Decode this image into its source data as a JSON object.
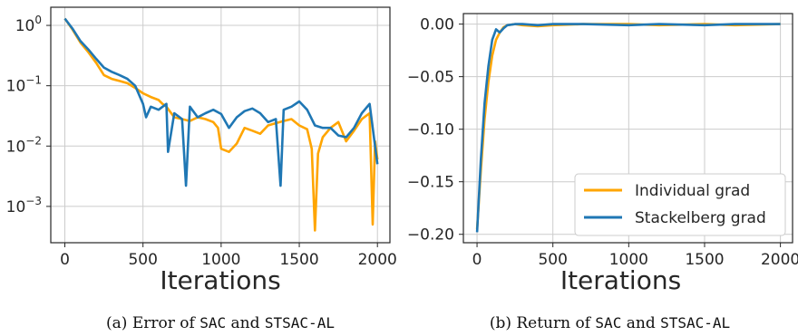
{
  "colors": {
    "individual": "#ffa500",
    "stackelberg": "#1f77b4",
    "grid": "#cccccc",
    "axis": "#262626"
  },
  "chart_data": [
    {
      "type": "line",
      "subplot": "a",
      "caption": {
        "prefix": "(a) Error of",
        "code1": "SAC",
        "mid": "and",
        "code2": "STSAC-AL"
      },
      "xlabel": "Iterations",
      "ylabel": "",
      "yscale": "log",
      "xlim": [
        -90,
        2080
      ],
      "ylim": [
        0.00025,
        2.0
      ],
      "xticks": [
        0,
        500,
        1000,
        1500,
        2000
      ],
      "ytick_values": [
        1,
        0.1,
        0.01,
        0.001
      ],
      "yticks": [
        {
          "base": "10",
          "exp": "0"
        },
        {
          "base": "10",
          "exp": "−1"
        },
        {
          "base": "10",
          "exp": "−2"
        },
        {
          "base": "10",
          "exp": "−3"
        }
      ],
      "grid": true,
      "legend": null,
      "series": [
        {
          "name": "Individual grad",
          "color": "#ffa500",
          "x": [
            0,
            50,
            100,
            150,
            200,
            250,
            300,
            350,
            400,
            450,
            500,
            550,
            600,
            625,
            650,
            700,
            750,
            800,
            850,
            900,
            950,
            980,
            1000,
            1050,
            1100,
            1150,
            1200,
            1250,
            1300,
            1350,
            1400,
            1450,
            1500,
            1550,
            1580,
            1600,
            1620,
            1650,
            1700,
            1750,
            1800,
            1850,
            1900,
            1950,
            1970,
            1985,
            2000
          ],
          "y": [
            1.3,
            0.85,
            0.52,
            0.36,
            0.24,
            0.15,
            0.13,
            0.12,
            0.11,
            0.092,
            0.075,
            0.065,
            0.058,
            0.05,
            0.045,
            0.03,
            0.028,
            0.026,
            0.03,
            0.028,
            0.025,
            0.02,
            0.009,
            0.008,
            0.011,
            0.02,
            0.018,
            0.016,
            0.022,
            0.024,
            0.026,
            0.028,
            0.022,
            0.019,
            0.009,
            0.0004,
            0.0075,
            0.014,
            0.02,
            0.025,
            0.012,
            0.018,
            0.028,
            0.035,
            0.0005,
            0.012,
            0.006
          ]
        },
        {
          "name": "Stackelberg grad",
          "color": "#1f77b4",
          "x": [
            0,
            50,
            100,
            150,
            200,
            250,
            300,
            350,
            400,
            450,
            500,
            520,
            550,
            600,
            650,
            660,
            700,
            750,
            775,
            800,
            850,
            900,
            950,
            1000,
            1050,
            1100,
            1150,
            1200,
            1250,
            1300,
            1350,
            1380,
            1400,
            1450,
            1500,
            1550,
            1600,
            1650,
            1700,
            1750,
            1800,
            1850,
            1900,
            1950,
            2000
          ],
          "y": [
            1.3,
            0.88,
            0.55,
            0.4,
            0.28,
            0.2,
            0.17,
            0.15,
            0.13,
            0.1,
            0.05,
            0.03,
            0.045,
            0.04,
            0.05,
            0.008,
            0.035,
            0.028,
            0.0022,
            0.045,
            0.03,
            0.035,
            0.04,
            0.034,
            0.02,
            0.03,
            0.038,
            0.042,
            0.035,
            0.025,
            0.028,
            0.0022,
            0.04,
            0.045,
            0.055,
            0.04,
            0.022,
            0.02,
            0.02,
            0.015,
            0.014,
            0.02,
            0.035,
            0.05,
            0.005
          ]
        }
      ]
    },
    {
      "type": "line",
      "subplot": "b",
      "caption": {
        "prefix": "(b) Return of",
        "code1": "SAC",
        "mid": "and",
        "code2": "STSAC-AL"
      },
      "xlabel": "Iterations",
      "ylabel": "",
      "xlim": [
        -90,
        2080
      ],
      "ylim": [
        -0.208,
        0.01
      ],
      "xticks": [
        0,
        500,
        1000,
        1500,
        2000
      ],
      "yticks": [
        0.0,
        -0.05,
        -0.1,
        -0.15,
        -0.2
      ],
      "ytick_labels": [
        "0.00",
        "−0.05",
        "−0.10",
        "−0.15",
        "−0.20"
      ],
      "grid": true,
      "legend": "bottom-right",
      "series": [
        {
          "name": "Individual grad",
          "color": "#ffa500",
          "x": [
            0,
            25,
            50,
            75,
            100,
            125,
            150,
            175,
            200,
            250,
            300,
            400,
            500,
            700,
            1000,
            1200,
            1500,
            1700,
            2000
          ],
          "y": [
            -0.195,
            -0.14,
            -0.09,
            -0.055,
            -0.03,
            -0.015,
            -0.008,
            -0.003,
            -0.001,
            0.0,
            -0.001,
            -0.002,
            -0.001,
            0.0,
            0.0,
            -0.001,
            0.0,
            -0.001,
            0.0
          ]
        },
        {
          "name": "Stackelberg grad",
          "color": "#1f77b4",
          "x": [
            0,
            25,
            50,
            75,
            100,
            125,
            150,
            175,
            200,
            250,
            300,
            400,
            500,
            700,
            1000,
            1200,
            1500,
            1700,
            2000
          ],
          "y": [
            -0.198,
            -0.13,
            -0.075,
            -0.04,
            -0.015,
            -0.005,
            -0.008,
            -0.004,
            -0.001,
            0.0,
            0.0,
            -0.001,
            0.0,
            0.0,
            -0.001,
            0.0,
            -0.001,
            0.0,
            0.0
          ]
        }
      ]
    }
  ]
}
